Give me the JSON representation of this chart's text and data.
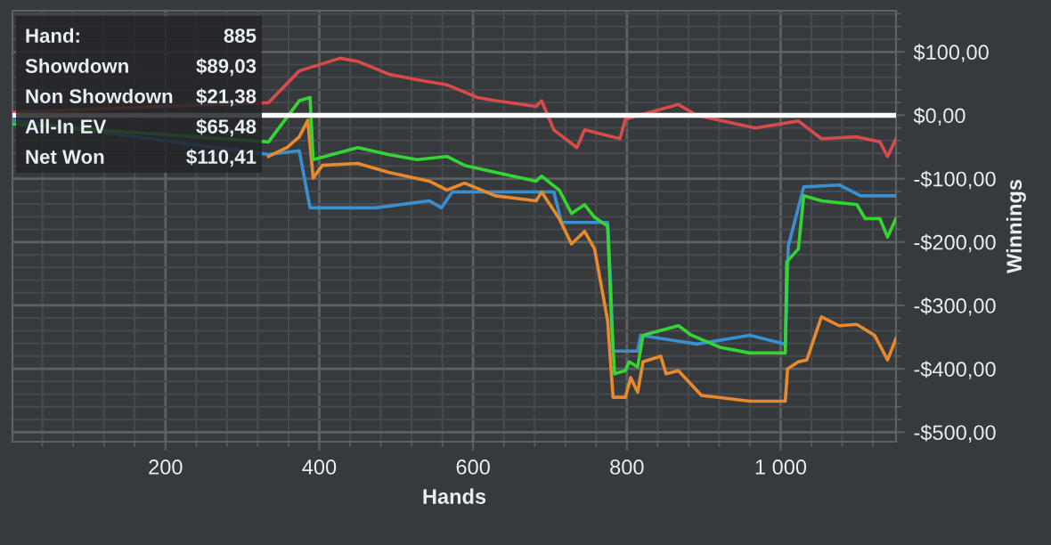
{
  "chart_data": {
    "type": "line",
    "xlabel": "Hands",
    "ylabel": "Winnings",
    "xlim": [
      1,
      1150
    ],
    "ylim": [
      -515,
      165
    ],
    "xticks": [
      200,
      400,
      600,
      800,
      {
        "value": 1000,
        "label": "1 000"
      }
    ],
    "yticks": [
      {
        "value": 100,
        "label": "$100,00"
      },
      {
        "value": 0,
        "label": "$0,00"
      },
      {
        "value": -100,
        "label": "-$100,00"
      },
      {
        "value": -200,
        "label": "-$200,00"
      },
      {
        "value": -300,
        "label": "-$300,00"
      },
      {
        "value": -400,
        "label": "-$400,00"
      },
      {
        "value": -500,
        "label": "-$500,00"
      }
    ],
    "grid": true,
    "ref_lines": [
      {
        "axis": "y",
        "value": 0,
        "color": "#ffffff"
      }
    ],
    "annotations": [
      "Hand:",
      "885",
      "Showdown",
      "$89,03",
      "Non Showdown",
      "$21,38",
      "All-In EV",
      "$65,48",
      "Net Won",
      "$110,41"
    ],
    "series": [
      {
        "color": "#d94a4a",
        "x": [
          3,
          334,
          374,
          427,
          450,
          490,
          527,
          566,
          606,
          629,
          682,
          689,
          705,
          735,
          745,
          791,
          798,
          867,
          891,
          967,
          1023,
          1053,
          1099,
          1129,
          1139,
          1150
        ],
        "values": [
          5,
          20,
          70,
          90,
          85,
          65,
          56,
          48,
          28,
          23,
          14,
          23,
          -23,
          -51,
          -23,
          -37,
          -6,
          17,
          0,
          -20,
          -9,
          -37,
          -34,
          -42,
          -65,
          -37
        ]
      },
      {
        "color": "#3a8fd0",
        "x": [
          3,
          334,
          374,
          388,
          473,
          543,
          559,
          573,
          705,
          715,
          775,
          779,
          782,
          814,
          818,
          891,
          960,
          1006,
          1010,
          1030,
          1076,
          1104,
          1150
        ],
        "values": [
          -8,
          -62,
          -56,
          -146,
          -146,
          -135,
          -146,
          -121,
          -121,
          -169,
          -169,
          -268,
          -372,
          -372,
          -347,
          -361,
          -347,
          -361,
          -206,
          -113,
          -110,
          -127,
          -127
        ]
      },
      {
        "color": "#e8892d",
        "x": [
          334,
          358,
          374,
          385,
          392,
          404,
          450,
          490,
          543,
          566,
          589,
          629,
          682,
          689,
          712,
          728,
          745,
          758,
          775,
          782,
          798,
          805,
          814,
          821,
          844,
          851,
          867,
          897,
          960,
          1006,
          1009,
          1023,
          1034,
          1053,
          1076,
          1099,
          1122,
          1139,
          1150
        ],
        "values": [
          -65,
          -51,
          -34,
          -8,
          -99,
          -79,
          -76,
          -90,
          -104,
          -118,
          -107,
          -127,
          -135,
          -121,
          -163,
          -203,
          -183,
          -211,
          -324,
          -445,
          -445,
          -414,
          -437,
          -389,
          -380,
          -408,
          -403,
          -442,
          -451,
          -451,
          -400,
          -389,
          -386,
          -318,
          -332,
          -330,
          -347,
          -386,
          -352
        ]
      },
      {
        "color": "#33d633",
        "x": [
          3,
          334,
          374,
          388,
          392,
          450,
          490,
          527,
          566,
          589,
          629,
          682,
          689,
          712,
          728,
          745,
          758,
          775,
          780,
          784,
          798,
          803,
          814,
          821,
          867,
          884,
          921,
          960,
          1006,
          1008,
          1023,
          1030,
          1053,
          1099,
          1110,
          1129,
          1139,
          1150
        ],
        "values": [
          -14,
          -42,
          23,
          28,
          -70,
          -51,
          -62,
          -70,
          -65,
          -79,
          -90,
          -104,
          -96,
          -118,
          -155,
          -141,
          -161,
          -175,
          -324,
          -408,
          -403,
          -389,
          -397,
          -347,
          -332,
          -347,
          -366,
          -375,
          -375,
          -231,
          -211,
          -127,
          -135,
          -141,
          -163,
          -163,
          -192,
          -163
        ]
      }
    ]
  }
}
